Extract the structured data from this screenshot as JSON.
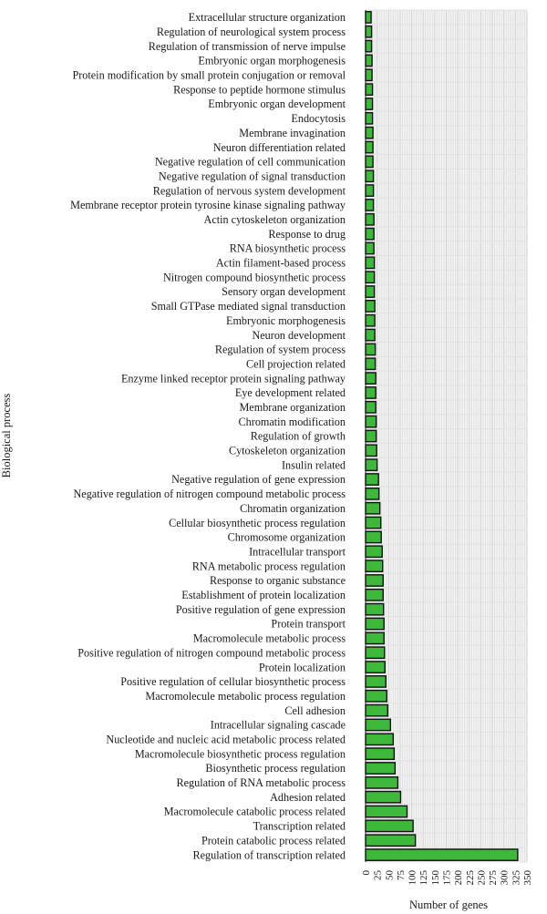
{
  "chart_data": {
    "type": "bar",
    "orientation": "horizontal",
    "xlabel": "Number of genes",
    "ylabel": "Biological process",
    "xlim": [
      0,
      350
    ],
    "xticks": [
      0,
      25,
      50,
      75,
      100,
      125,
      150,
      175,
      200,
      225,
      250,
      275,
      300,
      325,
      350
    ],
    "grid": true,
    "bar_color": "#3db83a",
    "categories": [
      "Extracellular structure organization",
      "Regulation of neurological system process",
      "Regulation of transmission of nerve impulse",
      "Embryonic organ morphogenesis",
      "Protein modification by small protein conjugation or removal",
      "Response to peptide hormone stimulus",
      "Embryonic organ development",
      "Endocytosis",
      "Membrane invagination",
      "Neuron differentiation related",
      "Negative regulation of cell communication",
      "Negative regulation of signal transduction",
      "Regulation of nervous system development",
      "Membrane receptor protein tyrosine kinase signaling pathway",
      "Actin cytoskeleton organization",
      "Response to drug",
      "RNA biosynthetic process",
      "Actin filament-based process",
      "Nitrogen compound biosynthetic process",
      "Sensory organ development",
      "Small GTPase mediated signal transduction",
      "Embryonic morphogenesis",
      "Neuron development",
      "Regulation of system process",
      "Cell projection related",
      "Enzyme linked receptor protein signaling pathway",
      "Eye development related",
      "Membrane organization",
      "Chromatin modification",
      "Regulation of growth",
      "Cytoskeleton organization",
      "Insulin related",
      "Negative regulation of gene expression",
      "Negative regulation of nitrogen compound metabolic process",
      "Chromatin organization",
      "Cellular biosynthetic process regulation",
      "Chromosome organization",
      "Intracellular transport",
      "RNA metabolic process regulation",
      "Response to organic substance",
      "Establishment of protein localization",
      "Positive regulation of gene expression",
      "Protein transport",
      "Macromolecule metabolic process",
      "Positive regulation of nitrogen compound metabolic process",
      "Protein localization",
      "Positive regulation of cellular biosynthetic process",
      "Macromolecule metabolic process regulation",
      "Cell adhesion",
      "Intracellular signaling cascade",
      "Nucleotide and nucleic acid metabolic process related",
      "Macromolecule biosynthetic process regulation",
      "Biosynthetic process regulation",
      "Regulation of RNA metabolic process",
      "Adhesion related",
      "Macromolecule catabolic process related",
      "Transcription related",
      "Protein catabolic process related",
      "Regulation of transcription related"
    ],
    "values": [
      12,
      13,
      13,
      14,
      14,
      15,
      15,
      15,
      16,
      16,
      16,
      17,
      17,
      17,
      18,
      18,
      18,
      19,
      19,
      19,
      20,
      20,
      20,
      21,
      21,
      22,
      22,
      22,
      23,
      23,
      24,
      25,
      28,
      29,
      31,
      33,
      34,
      36,
      37,
      38,
      38,
      39,
      40,
      40,
      41,
      42,
      44,
      46,
      48,
      54,
      60,
      62,
      64,
      70,
      76,
      90,
      103,
      108,
      330
    ]
  }
}
